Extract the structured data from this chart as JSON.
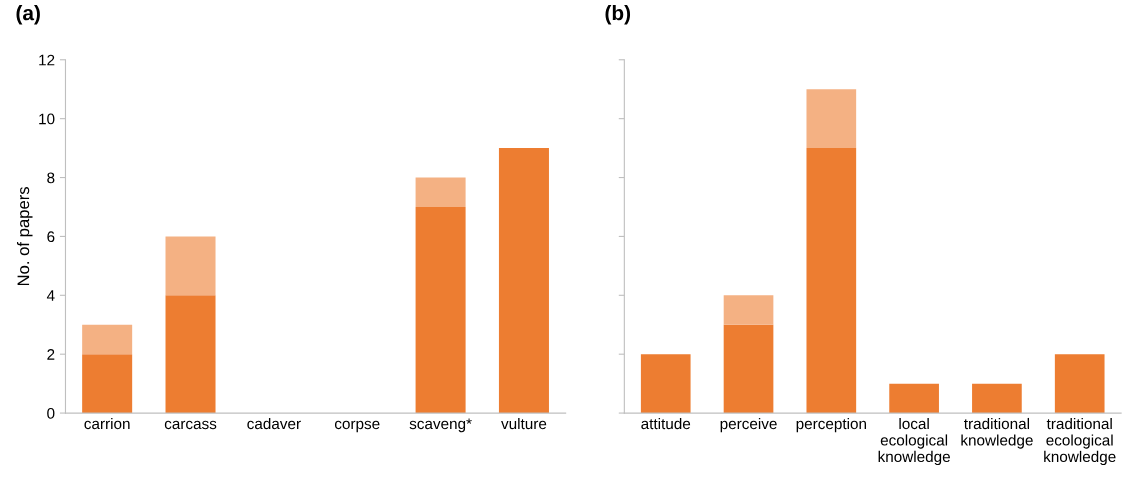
{
  "chart_data": [
    {
      "type": "bar",
      "title": "(a)",
      "ylabel": "No. of papers",
      "stacked": true,
      "categories": [
        "carrion",
        "carcass",
        "cadaver",
        "corpse",
        "scaveng*",
        "vulture"
      ],
      "series": [
        {
          "color": "#ed7d31",
          "values": [
            2,
            4,
            0,
            0,
            7,
            9
          ]
        },
        {
          "color": "#f4b183",
          "values": [
            1,
            2,
            0,
            0,
            1,
            0
          ]
        }
      ],
      "ylim": [
        0,
        12
      ],
      "yticks": [
        0,
        2,
        4,
        6,
        8,
        10,
        12
      ],
      "grid": false,
      "legend": false
    },
    {
      "type": "bar",
      "title": "(b)",
      "stacked": true,
      "categories": [
        "attitude",
        "perceive",
        "perception",
        "local\necological\nknowledge",
        "traditional\nknowledge",
        "traditional\necological\nknowledge"
      ],
      "series": [
        {
          "color": "#ed7d31",
          "values": [
            2,
            3,
            9,
            1,
            1,
            2
          ]
        },
        {
          "color": "#f4b183",
          "values": [
            0,
            1,
            2,
            0,
            0,
            0
          ]
        }
      ],
      "ylim": [
        0,
        12
      ],
      "yticks": [
        0,
        2,
        4,
        6,
        8,
        10,
        12
      ],
      "tick_labels": "x",
      "grid": false,
      "legend": false
    }
  ]
}
